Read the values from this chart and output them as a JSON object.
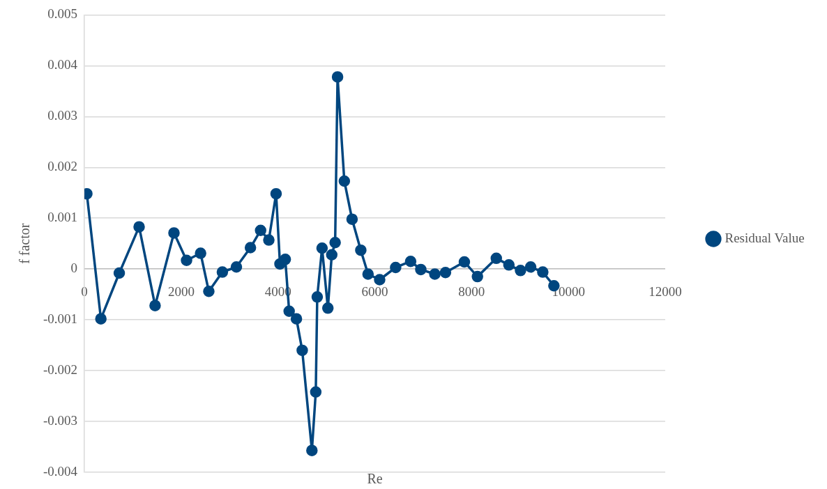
{
  "chart_data": {
    "type": "line",
    "xlabel": "Re",
    "ylabel": "f factor",
    "x": [
      50,
      340,
      720,
      1130,
      1460,
      1850,
      2110,
      2400,
      2570,
      2850,
      3140,
      3430,
      3640,
      3810,
      3960,
      4040,
      4150,
      4230,
      4380,
      4500,
      4700,
      4780,
      4810,
      4910,
      5030,
      5110,
      5180,
      5230,
      5370,
      5530,
      5710,
      5860,
      6100,
      6430,
      6740,
      6950,
      7240,
      7460,
      7850,
      8120,
      8510,
      8770,
      9010,
      9220,
      9470,
      9700
    ],
    "series": [
      {
        "name": "Residual Value",
        "color": "#00467f",
        "values": [
          0.00148,
          -0.00098,
          -8e-05,
          0.00083,
          -0.00072,
          0.00071,
          0.00017,
          0.00031,
          -0.00044,
          -6e-05,
          4e-05,
          0.00042,
          0.00076,
          0.00057,
          0.00148,
          0.0001,
          0.00019,
          -0.00083,
          -0.00098,
          -0.0016,
          -0.00357,
          -0.00242,
          -0.00055,
          0.00041,
          -0.00077,
          0.00028,
          0.00052,
          0.00378,
          0.00173,
          0.00098,
          0.00037,
          -0.0001,
          -0.00021,
          3e-05,
          0.00015,
          -1e-05,
          -0.0001,
          -7e-05,
          0.00014,
          -0.00015,
          0.00021,
          8e-05,
          -3e-05,
          4e-05,
          -6e-05,
          -0.00033
        ]
      }
    ],
    "xlim": [
      0,
      12000
    ],
    "xticks": [
      0,
      2000,
      4000,
      6000,
      8000,
      10000,
      12000
    ],
    "ylim": [
      -0.004,
      0.005
    ],
    "yticks": [
      -0.004,
      -0.003,
      -0.002,
      -0.001,
      0,
      0.001,
      0.002,
      0.003,
      0.004,
      0.005
    ],
    "grid": "y",
    "legend": "right",
    "marker": "circle",
    "line_style": "solid"
  }
}
